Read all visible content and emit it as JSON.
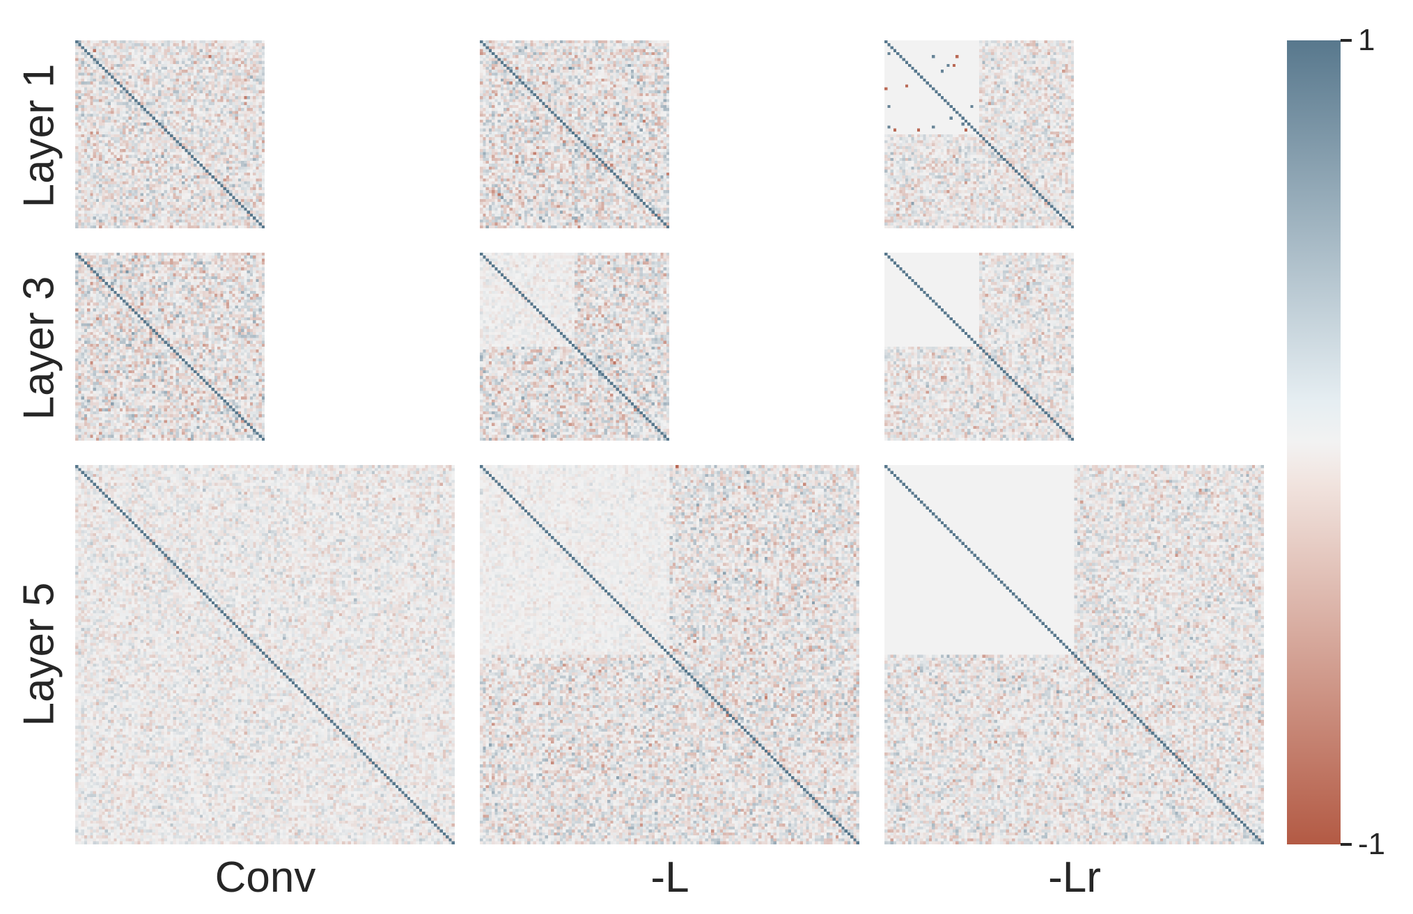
{
  "chart_data": {
    "type": "heatmap",
    "layout": "grid of correlation matrices",
    "row_labels": [
      "Layer 1",
      "Layer 3",
      "Layer 5"
    ],
    "column_labels": [
      "Conv",
      "-L",
      "-Lr"
    ],
    "colorbar": {
      "min": -1,
      "max": 1,
      "tick_labels": [
        "1",
        "-1"
      ],
      "color_high": "#58788d",
      "color_mid": "#f2f2f2",
      "color_low": "#b35a44"
    },
    "panels": [
      {
        "row": "Layer 1",
        "column": "Conv",
        "matrix_size": 64,
        "diagonal": 1,
        "block_structure": "none",
        "noise": 0.4
      },
      {
        "row": "Layer 1",
        "column": "-L",
        "matrix_size": 64,
        "diagonal": 1,
        "block_structure": "none",
        "noise": 0.45
      },
      {
        "row": "Layer 1",
        "column": "-Lr",
        "matrix_size": 64,
        "diagonal": 1,
        "block_structure": "top-left near zero with sparse outliers",
        "noise": 0.35
      },
      {
        "row": "Layer 3",
        "column": "Conv",
        "matrix_size": 64,
        "diagonal": 1,
        "block_structure": "none",
        "noise": 0.45
      },
      {
        "row": "Layer 3",
        "column": "-L",
        "matrix_size": 64,
        "diagonal": 1,
        "block_structure": "top-left block weaker",
        "noise": 0.45
      },
      {
        "row": "Layer 3",
        "column": "-Lr",
        "matrix_size": 64,
        "diagonal": 1,
        "block_structure": "top-left block zero",
        "noise": 0.35
      },
      {
        "row": "Layer 5",
        "column": "Conv",
        "matrix_size": 128,
        "diagonal": 1,
        "block_structure": "none",
        "noise": 0.25
      },
      {
        "row": "Layer 5",
        "column": "-L",
        "matrix_size": 128,
        "diagonal": 1,
        "block_structure": "top-left block weaker",
        "noise": 0.4
      },
      {
        "row": "Layer 5",
        "column": "-Lr",
        "matrix_size": 128,
        "diagonal": 1,
        "block_structure": "top-left block zero",
        "noise": 0.35
      }
    ]
  }
}
